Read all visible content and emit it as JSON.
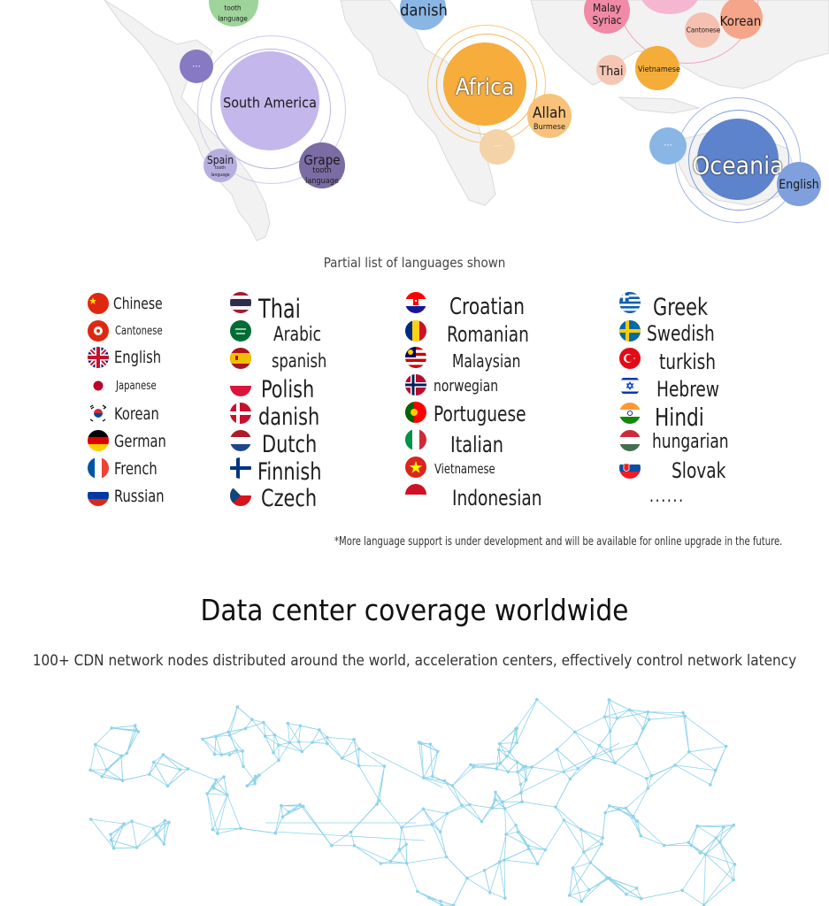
{
  "world_map": {
    "bubbles": {
      "tooth_top_line1": "tooth",
      "tooth_top_line2": "language",
      "danish": "danish",
      "malay": "Malay",
      "syriac": "Syriac",
      "korean": "Korean",
      "cantonese": "Cantonese",
      "thai": "Thai",
      "vietnamese": "Vietnamese",
      "south_america": "South America",
      "africa": "Africa",
      "allah": "Allah",
      "burmese": "Burmese",
      "spain": "Spain",
      "spain_sub1": "tooth",
      "spain_sub2": "language",
      "grape": "Grape",
      "grape_sub1": "tooth",
      "grape_sub2": "language",
      "oceania": "Oceania",
      "english": "English",
      "more_symbol": "···"
    }
  },
  "languages": {
    "caption": "Partial list of languages shown",
    "col1": [
      "Chinese",
      "Cantonese",
      "English",
      "Japanese",
      "Korean",
      "German",
      "French",
      "Russian"
    ],
    "col2": [
      "Thai",
      "Arabic",
      "spanish",
      "Polish",
      "danish",
      "Dutch",
      "Finnish",
      "Czech"
    ],
    "col3": [
      "Croatian",
      "Romanian",
      "Malaysian",
      "norwegian",
      "Portuguese",
      "Italian",
      "Vietnamese",
      "Indonesian"
    ],
    "col4": [
      "Greek",
      "Swedish",
      "turkish",
      "Hebrew",
      "Hindi",
      "hungarian",
      "Slovak",
      "......"
    ],
    "footnote": "*More language support is under development and will be available for online upgrade in the future."
  },
  "datacenter": {
    "title": "Data center coverage worldwide",
    "subtitle": "100+ CDN network nodes distributed around the world, acceleration centers, effectively control network latency"
  },
  "colors": {
    "map_gray": "#f1f1f1",
    "network_line": "#8fd3ea",
    "south_america": "#c3b7ec",
    "africa": "#f6ad3c",
    "oceania": "#5d83cc"
  }
}
